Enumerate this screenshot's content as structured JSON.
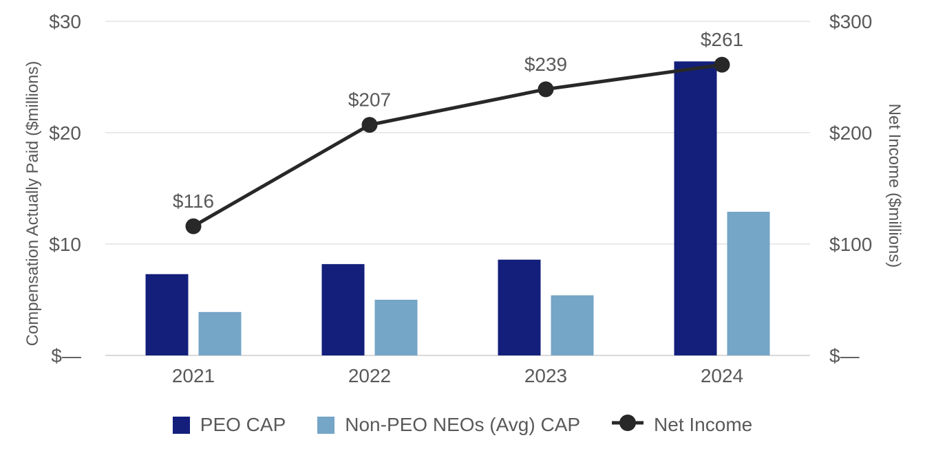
{
  "chart_data": {
    "type": "combo-bar-line",
    "categories": [
      "2021",
      "2022",
      "2023",
      "2024"
    ],
    "series": [
      {
        "name": "PEO CAP",
        "type": "bar",
        "axis": "left",
        "color": "#131F7B",
        "values": [
          7.3,
          8.2,
          8.6,
          26.4
        ]
      },
      {
        "name": "Non-PEO NEOs (Avg) CAP",
        "type": "bar",
        "axis": "left",
        "color": "#75A5C7",
        "values": [
          3.9,
          5.0,
          5.4,
          12.9
        ]
      },
      {
        "name": "Net Income",
        "type": "line",
        "axis": "right",
        "color": "#282828",
        "values": [
          116,
          207,
          239,
          261
        ],
        "point_labels": [
          "$116",
          "$207",
          "$239",
          "$261"
        ]
      }
    ],
    "left_axis": {
      "title": "Compensation Actually Paid ($millions)",
      "range": [
        0,
        30
      ],
      "ticks": [
        {
          "value": 30,
          "label": "$30"
        },
        {
          "value": 20,
          "label": "$20"
        },
        {
          "value": 10,
          "label": "$10"
        },
        {
          "value": 0,
          "label": "$—"
        }
      ]
    },
    "right_axis": {
      "title": "Net Income ($millions)",
      "range": [
        0,
        300
      ],
      "ticks": [
        {
          "value": 300,
          "label": "$300"
        },
        {
          "value": 200,
          "label": "$200"
        },
        {
          "value": 100,
          "label": "$100"
        },
        {
          "value": 0,
          "label": "$—"
        }
      ]
    },
    "grid": "horizontal",
    "legend_position": "bottom",
    "style": {
      "text_color": "#595959",
      "grid_color": "#EAEAEA",
      "axis_line_color": "#D9D9D9",
      "background": "#FFFFFF"
    }
  }
}
